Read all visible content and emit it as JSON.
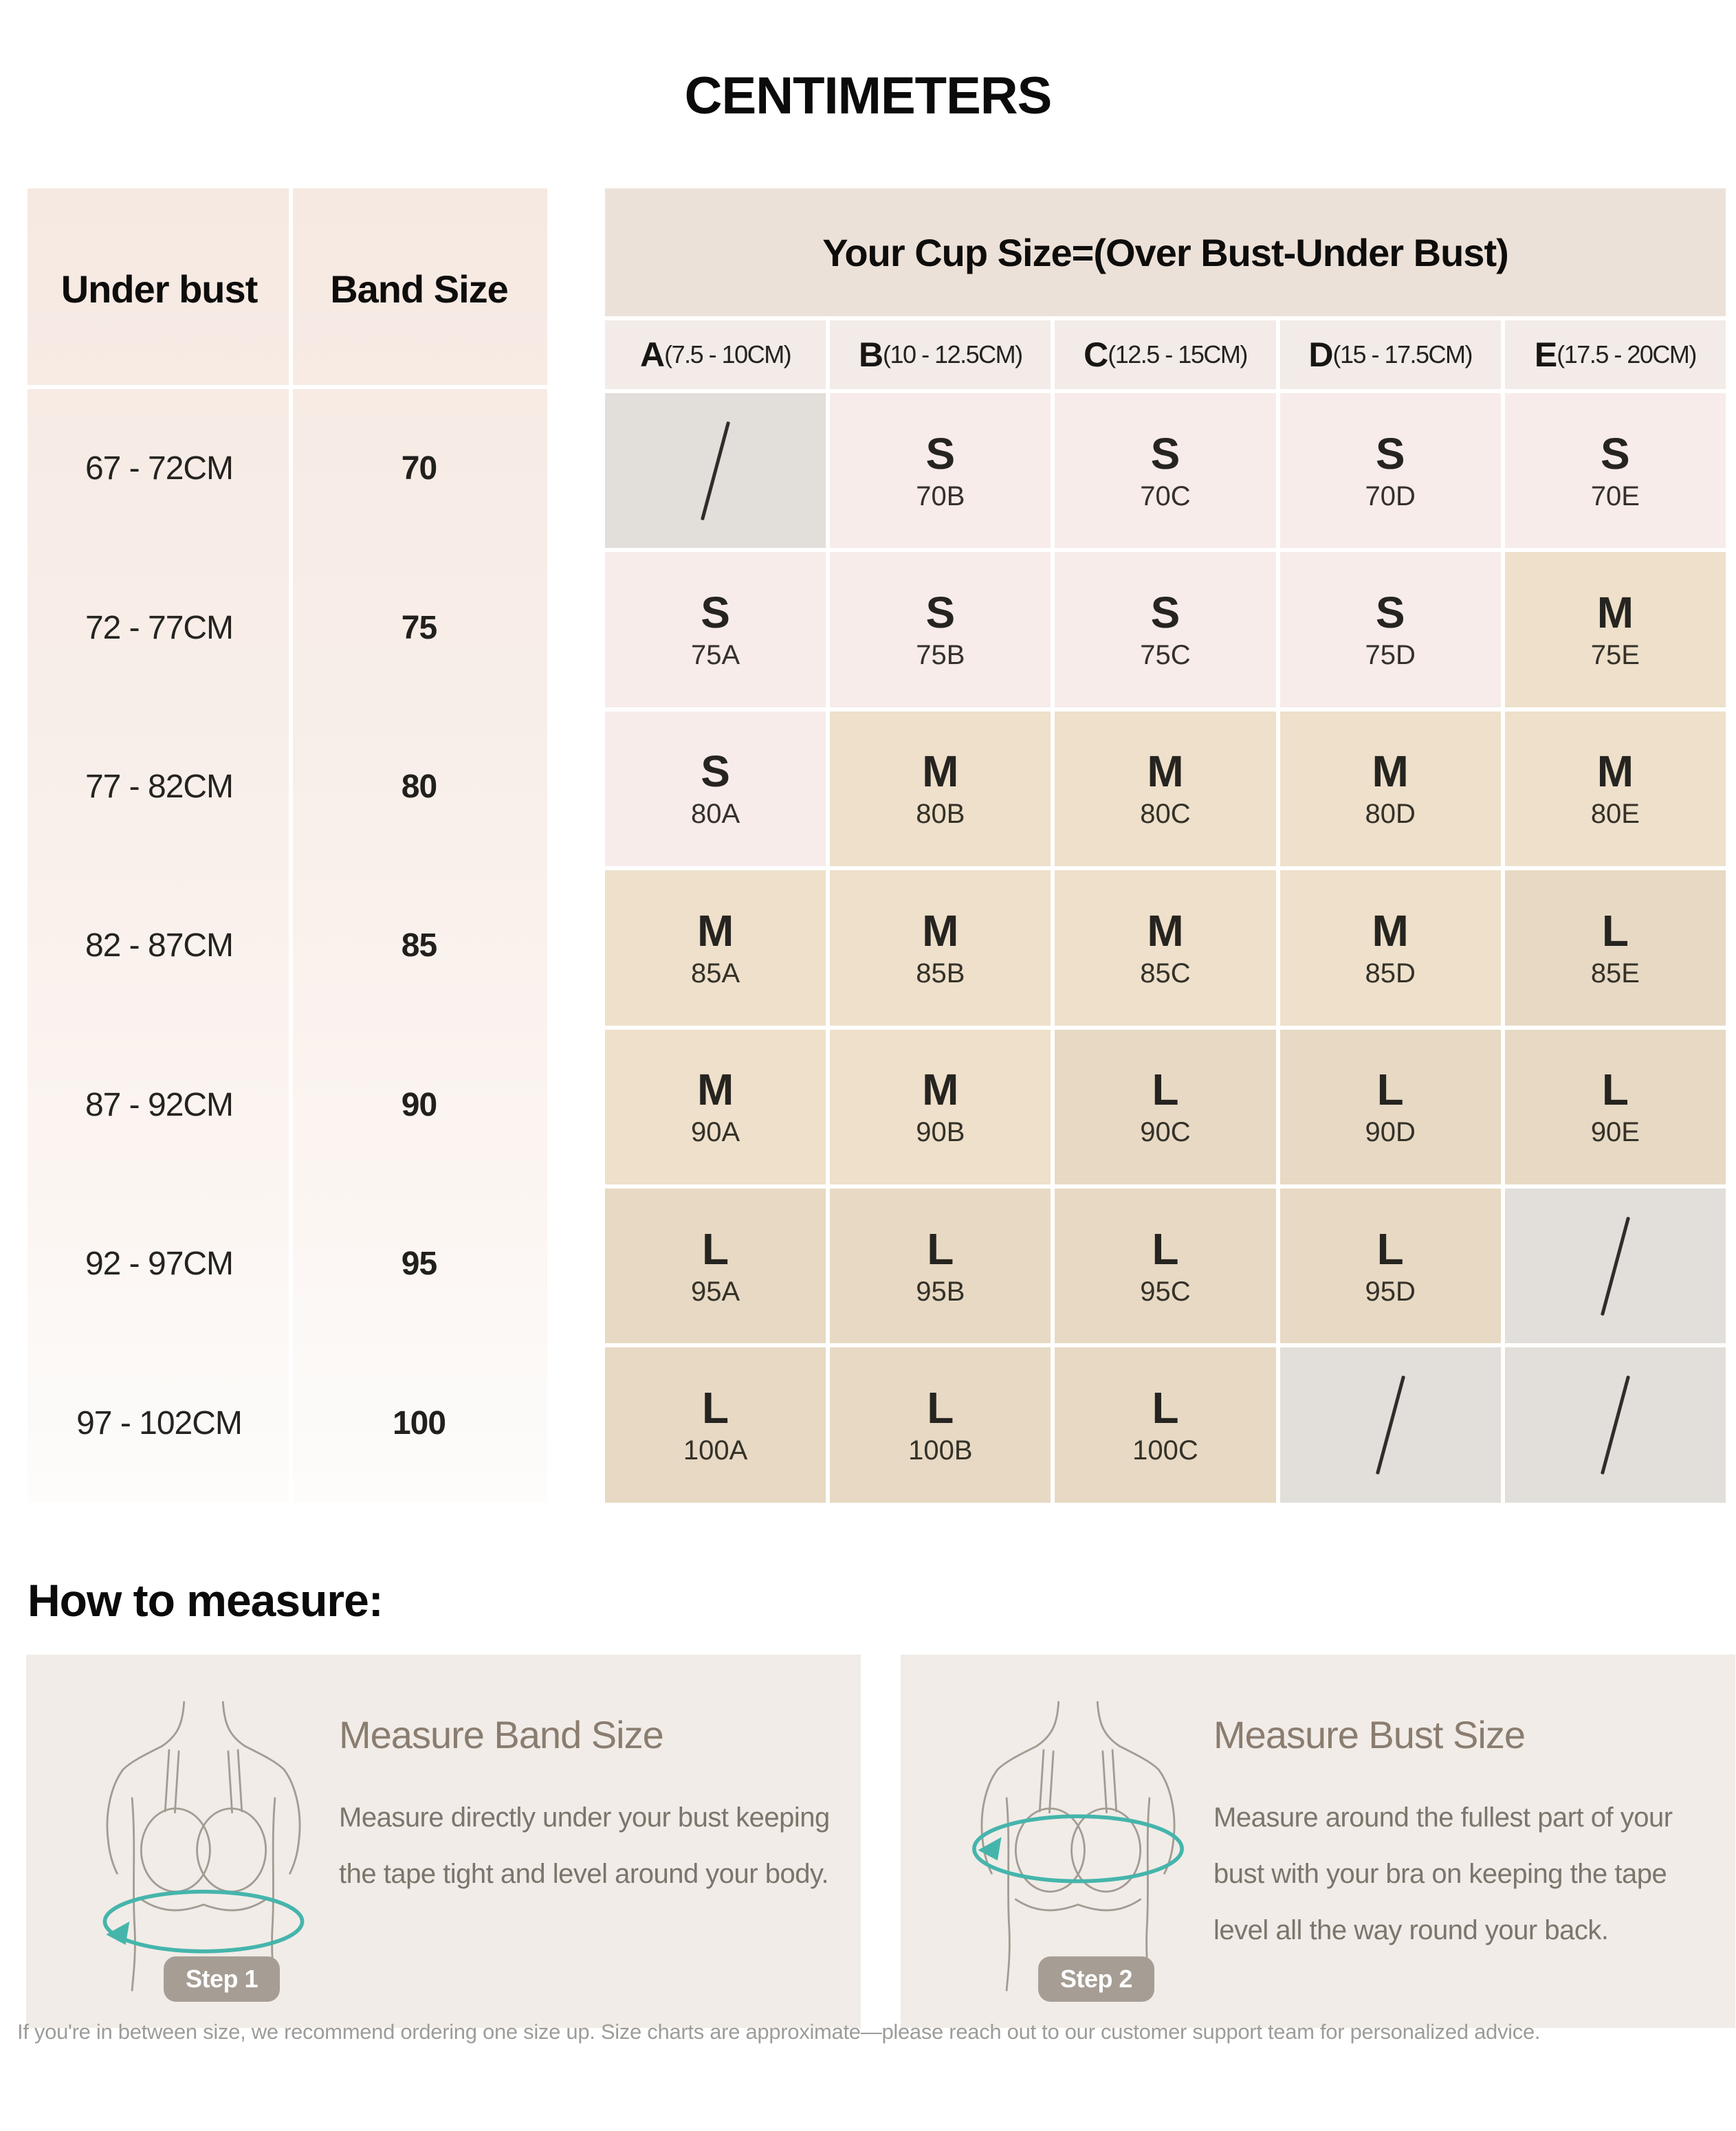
{
  "title": "CENTIMETERS",
  "left_table": {
    "under_bust_header": "Under bust",
    "band_size_header": "Band Size",
    "rows": [
      {
        "under_bust": "67 - 72CM",
        "band": "70"
      },
      {
        "under_bust": "72 - 77CM",
        "band": "75"
      },
      {
        "under_bust": "77 - 82CM",
        "band": "80"
      },
      {
        "under_bust": "82 - 87CM",
        "band": "85"
      },
      {
        "under_bust": "87 - 92CM",
        "band": "90"
      },
      {
        "under_bust": "92 - 97CM",
        "band": "95"
      },
      {
        "under_bust": "97 - 102CM",
        "band": "100"
      }
    ]
  },
  "cup_table": {
    "header": "Your Cup Size=(Over Bust-Under Bust)",
    "columns": [
      {
        "letter": "A",
        "range": "(7.5 - 10CM)"
      },
      {
        "letter": "B",
        "range": "(10 - 12.5CM)"
      },
      {
        "letter": "C",
        "range": "(12.5 - 15CM)"
      },
      {
        "letter": "D",
        "range": "(15 - 17.5CM)"
      },
      {
        "letter": "E",
        "range": "(17.5 - 20CM)"
      }
    ],
    "rows": [
      {
        "cells": [
          {
            "letter": "/",
            "code": "",
            "category": "na"
          },
          {
            "letter": "S",
            "code": "70B",
            "category": "s"
          },
          {
            "letter": "S",
            "code": "70C",
            "category": "s"
          },
          {
            "letter": "S",
            "code": "70D",
            "category": "s"
          },
          {
            "letter": "S",
            "code": "70E",
            "category": "s"
          }
        ]
      },
      {
        "cells": [
          {
            "letter": "S",
            "code": "75A",
            "category": "s"
          },
          {
            "letter": "S",
            "code": "75B",
            "category": "s"
          },
          {
            "letter": "S",
            "code": "75C",
            "category": "s"
          },
          {
            "letter": "S",
            "code": "75D",
            "category": "s"
          },
          {
            "letter": "M",
            "code": "75E",
            "category": "m"
          }
        ]
      },
      {
        "cells": [
          {
            "letter": "S",
            "code": "80A",
            "category": "s"
          },
          {
            "letter": "M",
            "code": "80B",
            "category": "m"
          },
          {
            "letter": "M",
            "code": "80C",
            "category": "m"
          },
          {
            "letter": "M",
            "code": "80D",
            "category": "m"
          },
          {
            "letter": "M",
            "code": "80E",
            "category": "m"
          }
        ]
      },
      {
        "cells": [
          {
            "letter": "M",
            "code": "85A",
            "category": "m"
          },
          {
            "letter": "M",
            "code": "85B",
            "category": "m"
          },
          {
            "letter": "M",
            "code": "85C",
            "category": "m"
          },
          {
            "letter": "M",
            "code": "85D",
            "category": "m"
          },
          {
            "letter": "L",
            "code": "85E",
            "category": "l"
          }
        ]
      },
      {
        "cells": [
          {
            "letter": "M",
            "code": "90A",
            "category": "m"
          },
          {
            "letter": "M",
            "code": "90B",
            "category": "m"
          },
          {
            "letter": "L",
            "code": "90C",
            "category": "l"
          },
          {
            "letter": "L",
            "code": "90D",
            "category": "l"
          },
          {
            "letter": "L",
            "code": "90E",
            "category": "l"
          }
        ]
      },
      {
        "cells": [
          {
            "letter": "L",
            "code": "95A",
            "category": "l"
          },
          {
            "letter": "L",
            "code": "95B",
            "category": "l"
          },
          {
            "letter": "L",
            "code": "95C",
            "category": "l"
          },
          {
            "letter": "L",
            "code": "95D",
            "category": "l"
          },
          {
            "letter": "/",
            "code": "",
            "category": "na"
          }
        ]
      },
      {
        "cells": [
          {
            "letter": "L",
            "code": "100A",
            "category": "l"
          },
          {
            "letter": "L",
            "code": "100B",
            "category": "l"
          },
          {
            "letter": "L",
            "code": "100C",
            "category": "l"
          },
          {
            "letter": "/",
            "code": "",
            "category": "na"
          },
          {
            "letter": "/",
            "code": "",
            "category": "na"
          }
        ]
      }
    ]
  },
  "how_to_measure": {
    "heading": "How to measure:",
    "cards": [
      {
        "title": "Measure Band Size",
        "body": "Measure directly under your bust keeping the tape tight and level around your body.",
        "step": "Step 1"
      },
      {
        "title": "Measure Bust Size",
        "body": "Measure around the fullest part of your bust with your bra on keeping the tape level all the way round your back.",
        "step": "Step 2"
      }
    ]
  },
  "footer": "If you're in between size, we recommend ordering one size up. Size charts are approximate—please reach out to our customer support team for personalized advice.",
  "colors": {
    "pink_s": "#f7ecea",
    "tan_m": "#eee0ca",
    "tan_l": "#e7d9c3",
    "gray_na": "#e2ded9",
    "cup_band": "#ece1d8",
    "column_header": "#f2ebe7",
    "teal_accent": "#45b5ac",
    "card_bg": "#f1ece7",
    "badge_bg": "#a69d94"
  }
}
